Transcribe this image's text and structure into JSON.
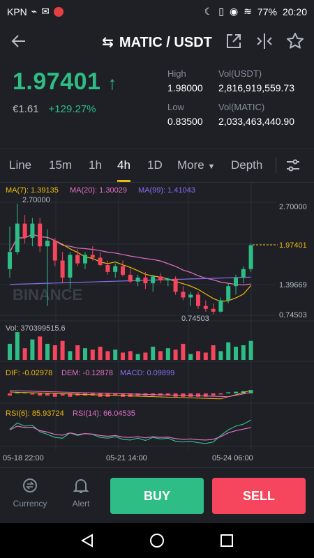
{
  "status": {
    "carrier": "KPN",
    "battery": "77%",
    "time": "20:20"
  },
  "header": {
    "title": "MATIC / USDT"
  },
  "ticker": {
    "last_price": "1.97401",
    "fiat_price": "€1.61",
    "change": "+129.27%",
    "high_label": "High",
    "high_value": "1.98000",
    "low_label": "Low",
    "low_value": "0.83500",
    "vol_usdt_label": "Vol(USDT)",
    "vol_usdt_value": "2,816,919,559.73",
    "vol_matic_label": "Vol(MATIC)",
    "vol_matic_value": "2,033,463,440.90"
  },
  "tabs": {
    "line": "Line",
    "m15": "15m",
    "h1": "1h",
    "h4": "4h",
    "d1": "1D",
    "more": "More",
    "depth": "Depth"
  },
  "chart": {
    "ma7": "MA(7): 1.39135",
    "ma20": "MA(20): 1.30029",
    "ma99": "MA(99): 1.41043",
    "watermark": "BINANCE",
    "price_axis": [
      "2.70000",
      "1.97401",
      "1.39669",
      "0.74503"
    ],
    "high_marker": "2.70000",
    "low_marker": "0.74503",
    "vol_label": "Vol: 370399515.6",
    "dif": "DIF: -0.02978",
    "dem": "DEM: -0.12878",
    "macd": "MACD: 0.09899",
    "rsi6": "RSI(6): 85.93724",
    "rsi14": "RSI(14): 66.04535",
    "time_axis": [
      "05-18 22:00",
      "05-21 14:00",
      "05-24 06:00"
    ],
    "colors": {
      "up": "#2ebd85",
      "down": "#f6465d",
      "ma7": "#f0b90b",
      "ma20": "#e56ec9",
      "ma99": "#8b6cf0"
    }
  },
  "chart_data": {
    "type": "candlestick",
    "candles": [
      {
        "o": 1.55,
        "h": 2.3,
        "l": 1.4,
        "c": 1.85
      },
      {
        "o": 1.85,
        "h": 2.7,
        "l": 1.8,
        "c": 2.35
      },
      {
        "o": 2.35,
        "h": 2.5,
        "l": 2.0,
        "c": 2.1
      },
      {
        "o": 2.1,
        "h": 2.45,
        "l": 1.95,
        "c": 2.35
      },
      {
        "o": 2.35,
        "h": 2.45,
        "l": 1.85,
        "c": 1.95
      },
      {
        "o": 1.95,
        "h": 2.25,
        "l": 0.9,
        "c": 2.05
      },
      {
        "o": 2.05,
        "h": 2.1,
        "l": 1.6,
        "c": 1.7
      },
      {
        "o": 1.7,
        "h": 1.85,
        "l": 1.3,
        "c": 1.4
      },
      {
        "o": 1.4,
        "h": 1.85,
        "l": 1.2,
        "c": 1.8
      },
      {
        "o": 1.8,
        "h": 1.9,
        "l": 1.6,
        "c": 1.65
      },
      {
        "o": 1.65,
        "h": 1.85,
        "l": 1.55,
        "c": 1.8
      },
      {
        "o": 1.8,
        "h": 1.95,
        "l": 1.7,
        "c": 1.75
      },
      {
        "o": 1.75,
        "h": 1.85,
        "l": 1.6,
        "c": 1.62
      },
      {
        "o": 1.62,
        "h": 1.7,
        "l": 1.45,
        "c": 1.5
      },
      {
        "o": 1.5,
        "h": 1.65,
        "l": 1.4,
        "c": 1.6
      },
      {
        "o": 1.6,
        "h": 1.7,
        "l": 1.42,
        "c": 1.45
      },
      {
        "o": 1.45,
        "h": 1.55,
        "l": 1.3,
        "c": 1.33
      },
      {
        "o": 1.33,
        "h": 1.45,
        "l": 1.25,
        "c": 1.4
      },
      {
        "o": 1.4,
        "h": 1.5,
        "l": 1.2,
        "c": 1.3
      },
      {
        "o": 1.3,
        "h": 1.45,
        "l": 1.15,
        "c": 1.42
      },
      {
        "o": 1.42,
        "h": 1.48,
        "l": 1.3,
        "c": 1.35
      },
      {
        "o": 1.35,
        "h": 1.4,
        "l": 1.25,
        "c": 1.38
      },
      {
        "o": 1.38,
        "h": 1.42,
        "l": 1.1,
        "c": 1.15
      },
      {
        "o": 1.15,
        "h": 1.25,
        "l": 1.0,
        "c": 1.05
      },
      {
        "o": 1.05,
        "h": 1.15,
        "l": 0.9,
        "c": 1.1
      },
      {
        "o": 1.1,
        "h": 1.15,
        "l": 0.85,
        "c": 0.9
      },
      {
        "o": 0.9,
        "h": 1.0,
        "l": 0.8,
        "c": 0.85
      },
      {
        "o": 0.85,
        "h": 0.95,
        "l": 0.75,
        "c": 0.8
      },
      {
        "o": 0.8,
        "h": 1.05,
        "l": 0.78,
        "c": 1.0
      },
      {
        "o": 1.0,
        "h": 1.3,
        "l": 0.95,
        "c": 1.25
      },
      {
        "o": 1.25,
        "h": 1.45,
        "l": 1.1,
        "c": 1.4
      },
      {
        "o": 1.4,
        "h": 1.6,
        "l": 1.3,
        "c": 1.55
      },
      {
        "o": 1.55,
        "h": 2.0,
        "l": 1.5,
        "c": 1.97
      }
    ],
    "ylim": [
      0.74503,
      2.7
    ],
    "volume": [
      0.55,
      0.95,
      0.4,
      0.7,
      0.8,
      0.55,
      0.5,
      0.65,
      0.3,
      0.5,
      0.4,
      0.35,
      0.45,
      0.3,
      0.35,
      0.25,
      0.3,
      0.2,
      0.25,
      0.45,
      0.3,
      0.4,
      0.35,
      0.55,
      0.2,
      0.3,
      0.25,
      0.5,
      0.3,
      0.6,
      0.45,
      0.5,
      0.65
    ],
    "macd_hist": [
      -0.2,
      0.1,
      0.1,
      -0.1,
      -0.2,
      -0.2,
      -0.3,
      -0.2,
      -0.3,
      -0.2,
      -0.2,
      -0.2,
      -0.3,
      -0.3,
      -0.2,
      -0.3,
      -0.3,
      -0.2,
      -0.2,
      -0.2,
      -0.2,
      -0.2,
      -0.3,
      -0.3,
      -0.3,
      -0.3,
      -0.3,
      -0.2,
      -0.1,
      0.1,
      0.15,
      0.2,
      0.3
    ],
    "rsi6": [
      62,
      78,
      70,
      72,
      55,
      48,
      40,
      38,
      52,
      45,
      50,
      48,
      40,
      38,
      42,
      35,
      33,
      38,
      32,
      40,
      36,
      38,
      30,
      28,
      30,
      26,
      24,
      28,
      45,
      60,
      70,
      75,
      86
    ],
    "rsi14": [
      60,
      70,
      66,
      67,
      58,
      54,
      48,
      46,
      52,
      48,
      50,
      49,
      45,
      43,
      45,
      41,
      40,
      42,
      39,
      42,
      40,
      41,
      37,
      35,
      36,
      34,
      33,
      35,
      42,
      52,
      58,
      62,
      66
    ]
  }
}
